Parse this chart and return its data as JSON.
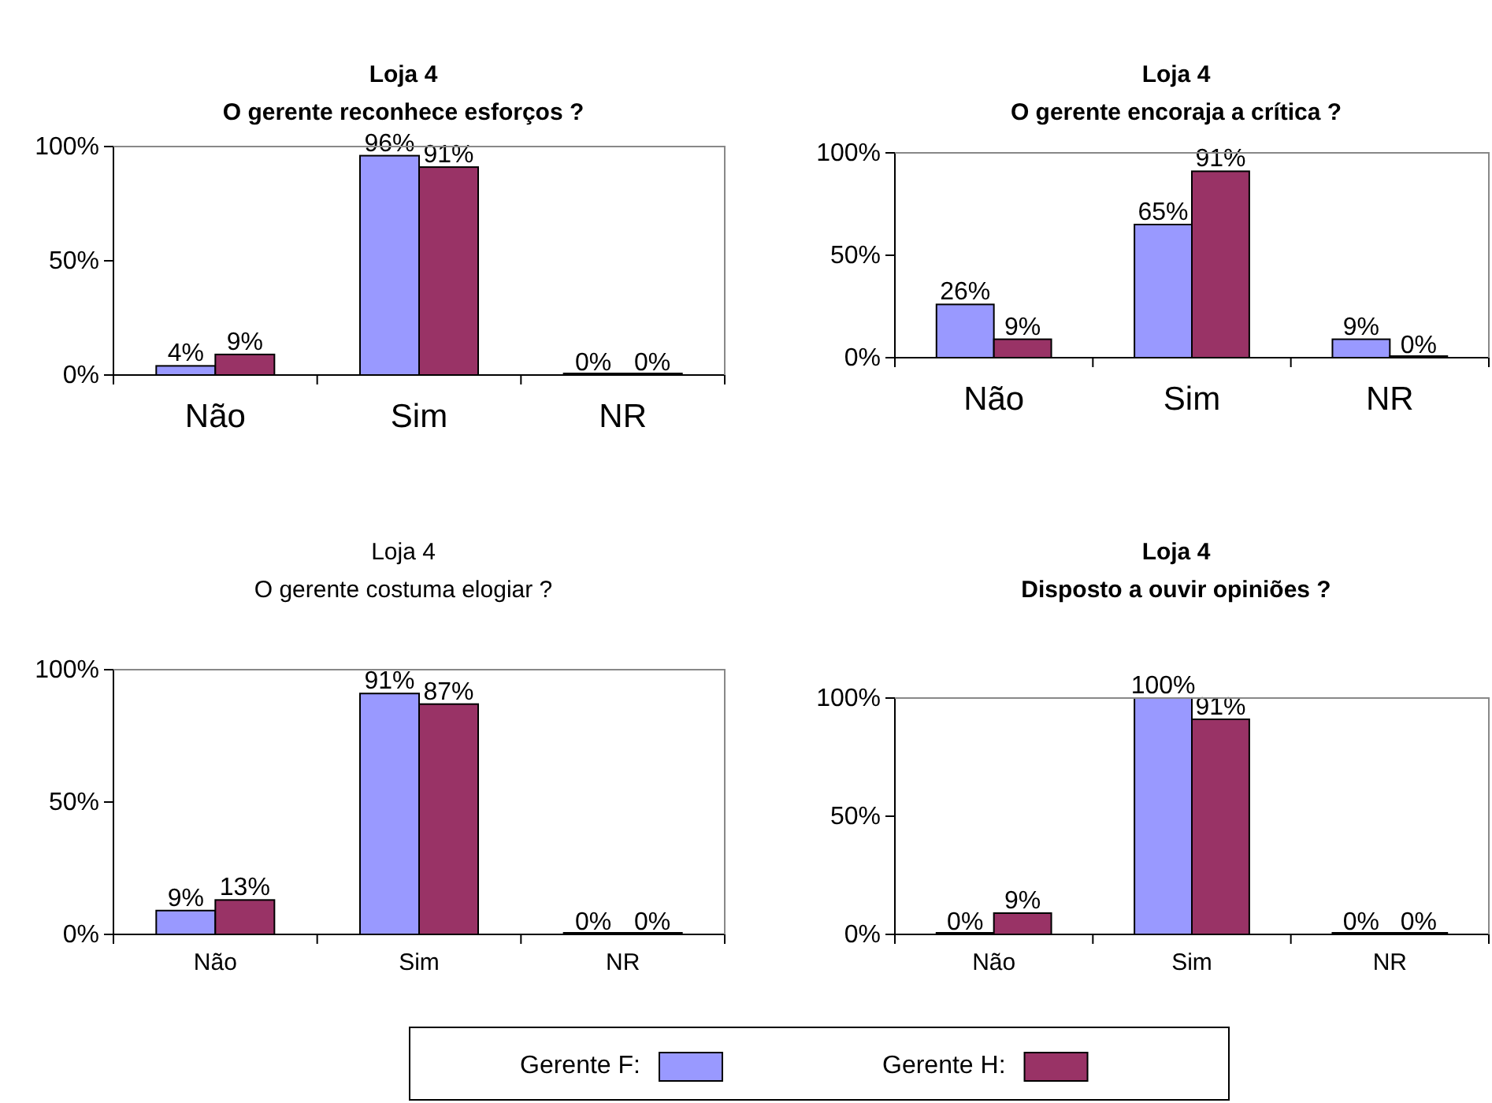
{
  "chart_data": [
    {
      "type": "bar",
      "title": "Loja 4",
      "subtitle": "O gerente reconhece esforços ?",
      "categories": [
        "Não",
        "Sim",
        "NR"
      ],
      "ylim": [
        0,
        100
      ],
      "yticks": [
        {
          "value": 0,
          "label": "0%"
        },
        {
          "value": 50,
          "label": "50%"
        },
        {
          "value": 100,
          "label": "100%"
        }
      ],
      "grid": false,
      "series": [
        {
          "color": "#9999ff",
          "values": [
            4,
            96,
            0
          ],
          "value_labels": [
            "4%",
            "96%",
            "0%"
          ]
        },
        {
          "color": "#993366",
          "values": [
            9,
            91,
            0
          ],
          "value_labels": [
            "9%",
            "91%",
            "0%"
          ]
        }
      ]
    },
    {
      "type": "bar",
      "title": "Loja 4",
      "subtitle": "O gerente encoraja a crítica ?",
      "categories": [
        "Não",
        "Sim",
        "NR"
      ],
      "ylim": [
        0,
        100
      ],
      "yticks": [
        {
          "value": 0,
          "label": "0%"
        },
        {
          "value": 50,
          "label": "50%"
        },
        {
          "value": 100,
          "label": "100%"
        }
      ],
      "grid": false,
      "series": [
        {
          "color": "#9999ff",
          "values": [
            26,
            65,
            9
          ],
          "value_labels": [
            "26%",
            "65%",
            "9%"
          ]
        },
        {
          "color": "#993366",
          "values": [
            9,
            91,
            0
          ],
          "value_labels": [
            "9%",
            "91%",
            "0%"
          ]
        }
      ]
    },
    {
      "type": "bar",
      "title": "Loja 4",
      "subtitle": "O gerente costuma elogiar ?",
      "categories": [
        "Não",
        "Sim",
        "NR"
      ],
      "ylim": [
        0,
        100
      ],
      "yticks": [
        {
          "value": 0,
          "label": "0%"
        },
        {
          "value": 50,
          "label": "50%"
        },
        {
          "value": 100,
          "label": "100%"
        }
      ],
      "grid": false,
      "series": [
        {
          "color": "#9999ff",
          "values": [
            9,
            91,
            0
          ],
          "value_labels": [
            "9%",
            "91%",
            "0%"
          ]
        },
        {
          "color": "#993366",
          "values": [
            13,
            87,
            0
          ],
          "value_labels": [
            "13%",
            "87%",
            "0%"
          ]
        }
      ]
    },
    {
      "type": "bar",
      "title": "Loja 4",
      "subtitle": "Disposto a ouvir opiniões ?",
      "categories": [
        "Não",
        "Sim",
        "NR"
      ],
      "ylim": [
        0,
        100
      ],
      "yticks": [
        {
          "value": 0,
          "label": "0%"
        },
        {
          "value": 50,
          "label": "50%"
        },
        {
          "value": 100,
          "label": "100%"
        }
      ],
      "grid": false,
      "legend": "bottom",
      "series": [
        {
          "name": "Gerente F:",
          "color": "#9999ff",
          "values": [
            0,
            100,
            0
          ],
          "value_labels": [
            "0%",
            "100%",
            "0%"
          ]
        },
        {
          "name": "Gerente H:",
          "color": "#993366",
          "values": [
            9,
            91,
            0
          ],
          "value_labels": [
            "9%",
            "91%",
            "0%"
          ]
        }
      ]
    }
  ]
}
